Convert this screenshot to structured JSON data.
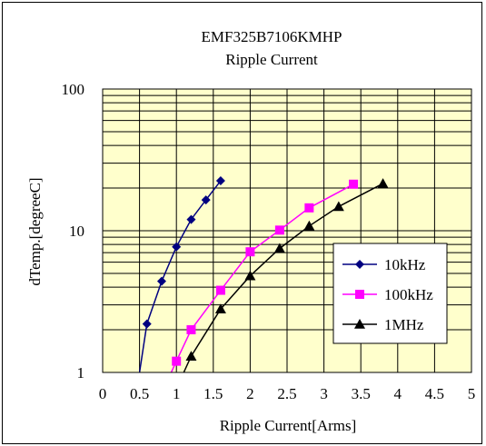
{
  "chart_data": {
    "type": "line",
    "title": "EMF325B7106KMHP",
    "subtitle": "Ripple Current",
    "xlabel": "Ripple Current[Arms]",
    "ylabel": "dTemp.[degreeC]",
    "xlim": [
      0,
      5
    ],
    "ylim": [
      1,
      100
    ],
    "yscale": "log",
    "x_ticks": [
      "0",
      "0.5",
      "1",
      "1.5",
      "2",
      "2.5",
      "3",
      "3.5",
      "4",
      "4.5",
      "5"
    ],
    "y_ticks": [
      "1",
      "10",
      "100"
    ],
    "grid": true,
    "plot_background": "#FFFFCC",
    "legend_position": "right",
    "series": [
      {
        "name": "10kHz",
        "color": "#000080",
        "marker": "diamond",
        "points": [
          [
            0.5,
            1
          ],
          [
            0.6,
            2.2
          ],
          [
            0.8,
            4.4
          ],
          [
            1.0,
            7.7
          ],
          [
            1.2,
            12
          ],
          [
            1.4,
            16.5
          ],
          [
            1.6,
            22.5
          ]
        ]
      },
      {
        "name": "100kHz",
        "color": "#FF00FF",
        "marker": "square",
        "points": [
          [
            0.93,
            1
          ],
          [
            1.0,
            1.2
          ],
          [
            1.2,
            2.0
          ],
          [
            1.6,
            3.8
          ],
          [
            2.0,
            7.1
          ],
          [
            2.4,
            10.1
          ],
          [
            2.8,
            14.5
          ],
          [
            3.4,
            21.3
          ]
        ]
      },
      {
        "name": "1MHz",
        "color": "#000000",
        "marker": "triangle",
        "points": [
          [
            1.1,
            1
          ],
          [
            1.2,
            1.3
          ],
          [
            1.6,
            2.8
          ],
          [
            2.0,
            4.8
          ],
          [
            2.4,
            7.5
          ],
          [
            2.8,
            10.8
          ],
          [
            3.2,
            14.8
          ],
          [
            3.8,
            21.5
          ]
        ]
      }
    ]
  }
}
